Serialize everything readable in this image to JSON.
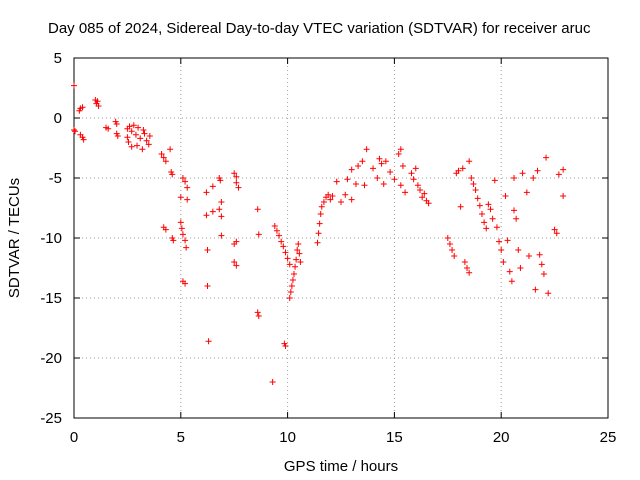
{
  "chart_data": {
    "type": "scatter",
    "title": "Day 085 of 2024, Sidereal Day-to-day VTEC variation (SDTVAR) for receiver aruc",
    "xlabel": "GPS time / hours",
    "ylabel": "SDTVAR / TECUs",
    "xlim": [
      0,
      25
    ],
    "ylim": [
      -25,
      5
    ],
    "xticks": [
      0,
      5,
      10,
      15,
      20,
      25
    ],
    "yticks": [
      5,
      0,
      -5,
      -10,
      -15,
      -20,
      -25
    ],
    "grid": true,
    "marker": "+",
    "color": "#ff0000",
    "series": [
      {
        "name": "SDTVAR",
        "points": [
          [
            0.0,
            2.7
          ],
          [
            0.0,
            -1.0
          ],
          [
            0.05,
            -1.1
          ],
          [
            0.25,
            0.6
          ],
          [
            0.3,
            0.8
          ],
          [
            0.4,
            0.9
          ],
          [
            0.3,
            -1.4
          ],
          [
            0.4,
            -1.6
          ],
          [
            0.45,
            -1.8
          ],
          [
            1.0,
            1.5
          ],
          [
            1.05,
            1.2
          ],
          [
            1.1,
            1.4
          ],
          [
            1.15,
            1.0
          ],
          [
            1.5,
            -0.8
          ],
          [
            1.6,
            -0.9
          ],
          [
            1.95,
            -0.3
          ],
          [
            2.0,
            -0.5
          ],
          [
            2.0,
            -1.3
          ],
          [
            2.05,
            -1.5
          ],
          [
            2.5,
            -0.9
          ],
          [
            2.5,
            -1.6
          ],
          [
            2.55,
            -2.0
          ],
          [
            2.6,
            -0.7
          ],
          [
            2.7,
            -1.1
          ],
          [
            2.7,
            -2.4
          ],
          [
            2.8,
            -0.6
          ],
          [
            2.9,
            -1.4
          ],
          [
            2.95,
            -2.3
          ],
          [
            3.0,
            -0.8
          ],
          [
            3.1,
            -1.7
          ],
          [
            3.2,
            -2.6
          ],
          [
            3.25,
            -1.0
          ],
          [
            3.3,
            -1.3
          ],
          [
            3.4,
            -1.9
          ],
          [
            3.5,
            -2.2
          ],
          [
            3.55,
            -1.5
          ],
          [
            4.1,
            -3.0
          ],
          [
            4.2,
            -3.3
          ],
          [
            4.3,
            -3.6
          ],
          [
            4.2,
            -9.1
          ],
          [
            4.3,
            -9.3
          ],
          [
            4.5,
            -2.6
          ],
          [
            4.55,
            -4.5
          ],
          [
            4.6,
            -4.7
          ],
          [
            4.6,
            -10.0
          ],
          [
            4.65,
            -10.2
          ],
          [
            5.0,
            -6.6
          ],
          [
            5.0,
            -8.7
          ],
          [
            5.05,
            -9.2
          ],
          [
            5.1,
            -9.7
          ],
          [
            5.1,
            -5.0
          ],
          [
            5.2,
            -5.3
          ],
          [
            5.2,
            -10.2
          ],
          [
            5.25,
            -10.8
          ],
          [
            5.3,
            -6.8
          ],
          [
            5.3,
            -5.8
          ],
          [
            5.1,
            -13.6
          ],
          [
            5.2,
            -13.8
          ],
          [
            6.2,
            -6.2
          ],
          [
            6.2,
            -8.1
          ],
          [
            6.25,
            -11.0
          ],
          [
            6.3,
            -18.6
          ],
          [
            6.25,
            -14.0
          ],
          [
            6.5,
            -7.8
          ],
          [
            6.5,
            -5.7
          ],
          [
            6.8,
            -5.0
          ],
          [
            6.85,
            -5.2
          ],
          [
            6.8,
            -7.6
          ],
          [
            6.9,
            -7.0
          ],
          [
            6.9,
            -8.2
          ],
          [
            6.9,
            -9.8
          ],
          [
            7.5,
            -4.6
          ],
          [
            7.6,
            -4.9
          ],
          [
            7.6,
            -5.4
          ],
          [
            7.7,
            -5.8
          ],
          [
            7.5,
            -10.5
          ],
          [
            7.6,
            -10.3
          ],
          [
            7.5,
            -12.0
          ],
          [
            7.6,
            -12.3
          ],
          [
            8.6,
            -7.6
          ],
          [
            8.65,
            -9.7
          ],
          [
            8.6,
            -16.2
          ],
          [
            8.65,
            -16.5
          ],
          [
            9.3,
            -22.0
          ],
          [
            9.4,
            -9.0
          ],
          [
            9.5,
            -9.4
          ],
          [
            9.6,
            -9.8
          ],
          [
            9.7,
            -10.3
          ],
          [
            9.8,
            -10.7
          ],
          [
            9.85,
            -18.8
          ],
          [
            9.9,
            -19.0
          ],
          [
            9.9,
            -11.2
          ],
          [
            10.0,
            -11.7
          ],
          [
            10.1,
            -12.2
          ],
          [
            10.1,
            -15.0
          ],
          [
            10.15,
            -14.5
          ],
          [
            10.2,
            -14.0
          ],
          [
            10.25,
            -13.5
          ],
          [
            10.3,
            -13.0
          ],
          [
            10.35,
            -12.4
          ],
          [
            10.4,
            -11.8
          ],
          [
            10.45,
            -11.0
          ],
          [
            10.5,
            -10.5
          ],
          [
            10.55,
            -11.3
          ],
          [
            10.6,
            -12.0
          ],
          [
            11.4,
            -10.4
          ],
          [
            11.45,
            -9.6
          ],
          [
            11.5,
            -8.8
          ],
          [
            11.55,
            -8.0
          ],
          [
            11.6,
            -7.4
          ],
          [
            11.7,
            -7.0
          ],
          [
            11.8,
            -6.6
          ],
          [
            11.9,
            -6.4
          ],
          [
            12.0,
            -6.8
          ],
          [
            12.1,
            -6.5
          ],
          [
            12.3,
            -5.3
          ],
          [
            12.5,
            -7.0
          ],
          [
            12.7,
            -6.4
          ],
          [
            12.8,
            -5.1
          ],
          [
            13.0,
            -4.3
          ],
          [
            13.0,
            -6.8
          ],
          [
            13.2,
            -5.5
          ],
          [
            13.3,
            -4.0
          ],
          [
            13.5,
            -3.6
          ],
          [
            13.6,
            -5.6
          ],
          [
            13.7,
            -2.6
          ],
          [
            14.0,
            -4.2
          ],
          [
            14.2,
            -5.0
          ],
          [
            14.3,
            -3.4
          ],
          [
            14.4,
            -3.8
          ],
          [
            14.5,
            -5.5
          ],
          [
            14.6,
            -3.6
          ],
          [
            14.8,
            -4.5
          ],
          [
            15.0,
            -5.1
          ],
          [
            15.2,
            -3.0
          ],
          [
            15.3,
            -2.6
          ],
          [
            15.3,
            -5.6
          ],
          [
            15.4,
            -4.0
          ],
          [
            15.5,
            -6.2
          ],
          [
            15.8,
            -4.6
          ],
          [
            15.9,
            -5.1
          ],
          [
            16.0,
            -4.2
          ],
          [
            16.1,
            -5.6
          ],
          [
            16.2,
            -6.0
          ],
          [
            16.3,
            -6.6
          ],
          [
            16.4,
            -6.3
          ],
          [
            16.5,
            -6.9
          ],
          [
            16.6,
            -7.1
          ],
          [
            17.5,
            -10.0
          ],
          [
            17.6,
            -10.5
          ],
          [
            17.7,
            -11.0
          ],
          [
            17.8,
            -11.5
          ],
          [
            17.9,
            -4.6
          ],
          [
            18.0,
            -4.4
          ],
          [
            18.1,
            -7.4
          ],
          [
            18.2,
            -4.2
          ],
          [
            18.3,
            -12.0
          ],
          [
            18.4,
            -12.5
          ],
          [
            18.5,
            -12.9
          ],
          [
            18.5,
            -3.6
          ],
          [
            18.6,
            -5.0
          ],
          [
            18.7,
            -5.5
          ],
          [
            18.8,
            -6.0
          ],
          [
            18.9,
            -6.7
          ],
          [
            19.0,
            -7.3
          ],
          [
            19.1,
            -8.0
          ],
          [
            19.2,
            -8.7
          ],
          [
            19.3,
            -9.2
          ],
          [
            19.4,
            -7.2
          ],
          [
            19.5,
            -7.6
          ],
          [
            19.6,
            -8.4
          ],
          [
            19.7,
            -5.2
          ],
          [
            19.8,
            -9.1
          ],
          [
            19.9,
            -10.3
          ],
          [
            20.0,
            -11.0
          ],
          [
            20.1,
            -12.0
          ],
          [
            20.2,
            -6.5
          ],
          [
            20.3,
            -10.2
          ],
          [
            20.4,
            -12.8
          ],
          [
            20.5,
            -13.6
          ],
          [
            20.6,
            -5.0
          ],
          [
            20.6,
            -7.7
          ],
          [
            20.7,
            -8.4
          ],
          [
            20.8,
            -11.0
          ],
          [
            20.9,
            -12.5
          ],
          [
            21.0,
            -4.6
          ],
          [
            21.2,
            -6.2
          ],
          [
            21.3,
            -11.5
          ],
          [
            21.5,
            -5.0
          ],
          [
            21.6,
            -14.3
          ],
          [
            21.7,
            -4.4
          ],
          [
            21.8,
            -11.4
          ],
          [
            21.9,
            -12.2
          ],
          [
            22.0,
            -13.0
          ],
          [
            22.1,
            -3.3
          ],
          [
            22.2,
            -14.6
          ],
          [
            22.5,
            -9.3
          ],
          [
            22.6,
            -9.6
          ],
          [
            22.7,
            -4.7
          ],
          [
            22.9,
            -4.3
          ],
          [
            22.9,
            -6.5
          ]
        ]
      }
    ]
  }
}
